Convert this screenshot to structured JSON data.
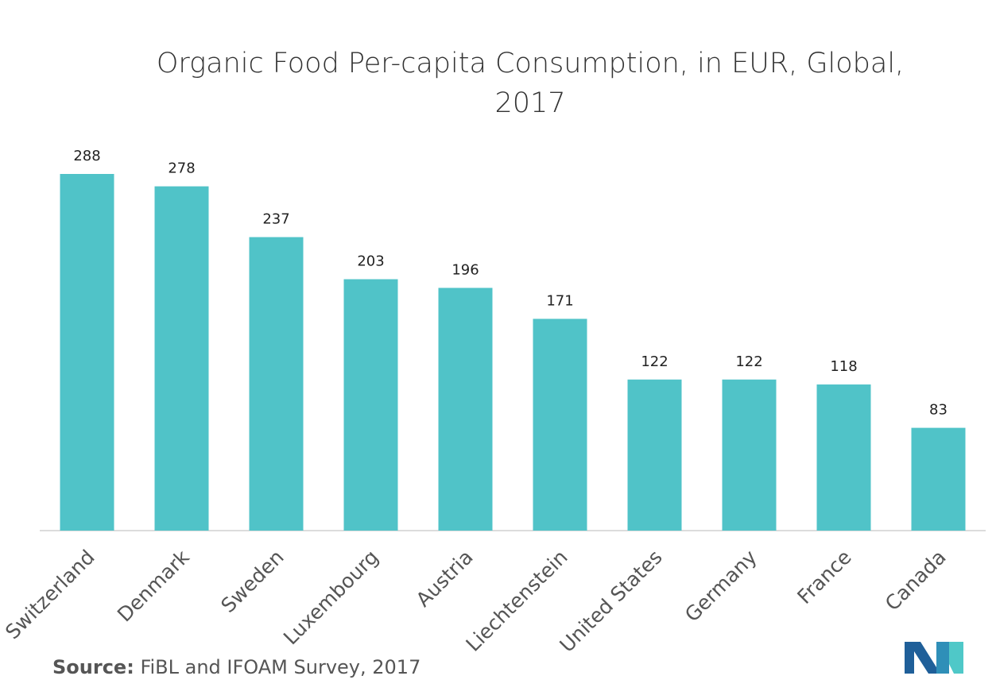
{
  "chart_data": {
    "type": "bar",
    "title": "Organic Food Per-capita Consumption, in EUR, Global, 2017",
    "categories": [
      "Switzerland",
      "Denmark",
      "Sweden",
      "Luxembourg",
      "Austria",
      "Liechtenstein",
      "United States",
      "Germany",
      "France",
      "Canada"
    ],
    "values": [
      288,
      278,
      237,
      203,
      196,
      171,
      122,
      122,
      118,
      83
    ],
    "color": "#50c3c8",
    "source_label": "Source:",
    "source": "FiBL and IFOAM Survey, 2017"
  }
}
